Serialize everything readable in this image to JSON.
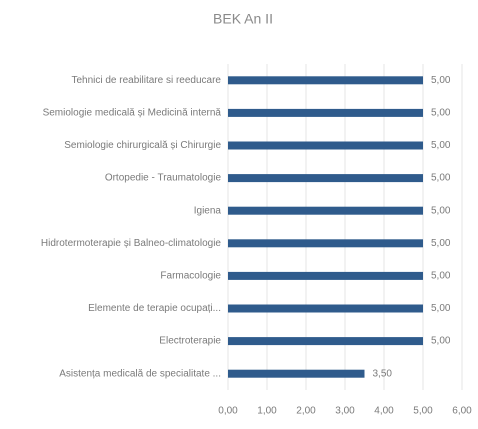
{
  "chart_data": {
    "type": "hbar",
    "title": "BEK An II",
    "categories": [
      "Tehnici de reabilitare si reeducare",
      "Semiologie medicală și Medicină internă",
      "Semiologie chirurgicală și Chirurgie",
      "Ortopedie - Traumatologie",
      "Igiena",
      "Hidrotermoterapie și Balneo-climatologie",
      "Farmacologie",
      "Elemente de terapie ocupați...",
      "Electroterapie",
      "Asistența medicală de specialitate ..."
    ],
    "values": [
      5,
      5,
      5,
      5,
      5,
      5,
      5,
      5,
      5,
      3.5
    ],
    "value_labels": [
      "5,00",
      "5,00",
      "5,00",
      "5,00",
      "5,00",
      "5,00",
      "5,00",
      "5,00",
      "5,00",
      "3,50"
    ],
    "color": "#2f5b8c",
    "xlim": [
      0,
      6
    ],
    "xticks": [
      {
        "value": 0,
        "label": "0,00"
      },
      {
        "value": 1,
        "label": "1,00"
      },
      {
        "value": 2,
        "label": "2,00"
      },
      {
        "value": 3,
        "label": "3,00"
      },
      {
        "value": 4,
        "label": "4,00"
      },
      {
        "value": 5,
        "label": "5,00"
      },
      {
        "value": 6,
        "label": "6,00"
      }
    ],
    "grid": true
  }
}
